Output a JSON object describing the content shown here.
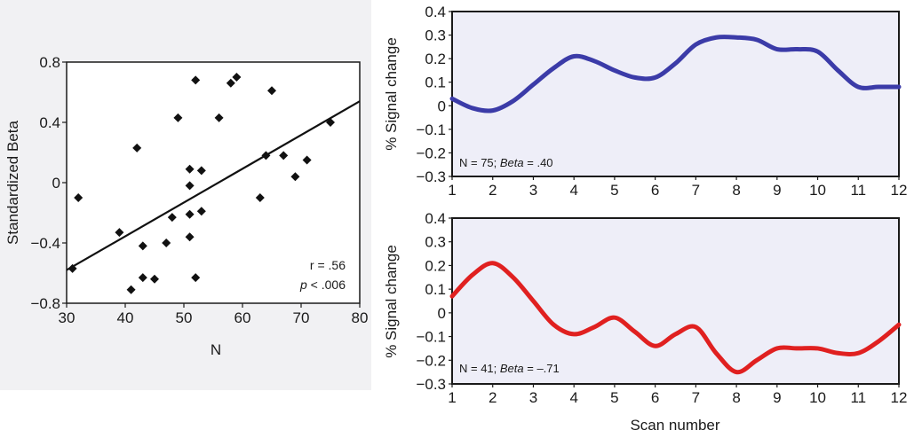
{
  "chart_data": [
    {
      "type": "scatter",
      "xlabel": "N",
      "ylabel": "Standardized Beta",
      "xlim": [
        30,
        80
      ],
      "ylim": [
        -0.8,
        0.8
      ],
      "xticks": [
        30,
        40,
        50,
        60,
        70,
        80
      ],
      "yticks": [
        0.8,
        0.4,
        0,
        -0.4,
        -0.8
      ],
      "ytick_labels": [
        "0.8",
        "0.4",
        "0",
        "−0.4",
        "−0.8"
      ],
      "points": [
        {
          "x": 31,
          "y": -0.57
        },
        {
          "x": 32,
          "y": -0.1
        },
        {
          "x": 39,
          "y": -0.33
        },
        {
          "x": 41,
          "y": -0.71
        },
        {
          "x": 42,
          "y": 0.23
        },
        {
          "x": 43,
          "y": -0.42
        },
        {
          "x": 43,
          "y": -0.63
        },
        {
          "x": 45,
          "y": -0.64
        },
        {
          "x": 47,
          "y": -0.4
        },
        {
          "x": 48,
          "y": -0.23
        },
        {
          "x": 49,
          "y": 0.43
        },
        {
          "x": 51,
          "y": -0.02
        },
        {
          "x": 51,
          "y": 0.09
        },
        {
          "x": 51,
          "y": -0.21
        },
        {
          "x": 51,
          "y": -0.36
        },
        {
          "x": 52,
          "y": 0.68
        },
        {
          "x": 52,
          "y": -0.63
        },
        {
          "x": 53,
          "y": 0.08
        },
        {
          "x": 53,
          "y": -0.19
        },
        {
          "x": 56,
          "y": 0.43
        },
        {
          "x": 58,
          "y": 0.66
        },
        {
          "x": 59,
          "y": 0.7
        },
        {
          "x": 63,
          "y": -0.1
        },
        {
          "x": 64,
          "y": 0.18
        },
        {
          "x": 65,
          "y": 0.61
        },
        {
          "x": 67,
          "y": 0.18
        },
        {
          "x": 69,
          "y": 0.04
        },
        {
          "x": 71,
          "y": 0.15
        },
        {
          "x": 75,
          "y": 0.4
        }
      ],
      "fit_line": {
        "x": [
          30,
          80
        ],
        "y": [
          -0.58,
          0.54
        ]
      },
      "annotation": {
        "r": "r = .56",
        "p_italic": "p",
        "p_rest": " < .006"
      }
    },
    {
      "type": "line",
      "ylabel": "% Signal change",
      "xlabel": "",
      "xlim": [
        1,
        12
      ],
      "ylim": [
        -0.3,
        0.4
      ],
      "xticks": [
        1,
        2,
        3,
        4,
        5,
        6,
        7,
        8,
        9,
        10,
        11,
        12
      ],
      "yticks": [
        0.4,
        0.3,
        0.2,
        0.1,
        0,
        -0.1,
        -0.2,
        -0.3
      ],
      "ytick_labels": [
        "0.4",
        "0.3",
        "0.2",
        "0.1",
        "0",
        "−0.1",
        "−0.2",
        "−0.3"
      ],
      "color": "#3b3ba8",
      "series": [
        {
          "x": [
            1,
            1.5,
            2,
            2.5,
            3,
            3.5,
            4,
            4.5,
            5,
            5.5,
            6,
            6.5,
            7,
            7.5,
            8,
            8.5,
            9,
            9.5,
            10,
            10.5,
            11,
            11.5,
            12
          ],
          "y": [
            0.03,
            -0.01,
            -0.02,
            0.02,
            0.09,
            0.16,
            0.21,
            0.19,
            0.15,
            0.12,
            0.12,
            0.18,
            0.26,
            0.29,
            0.29,
            0.28,
            0.24,
            0.24,
            0.23,
            0.15,
            0.08,
            0.08,
            0.08
          ]
        }
      ],
      "annotation": {
        "prefix": "N = 75; ",
        "beta_italic": "Beta",
        "suffix": " = .40"
      }
    },
    {
      "type": "line",
      "ylabel": "% Signal change",
      "xlabel": "Scan number",
      "xlim": [
        1,
        12
      ],
      "ylim": [
        -0.3,
        0.4
      ],
      "xticks": [
        1,
        2,
        3,
        4,
        5,
        6,
        7,
        8,
        9,
        10,
        11,
        12
      ],
      "yticks": [
        0.4,
        0.3,
        0.2,
        0.1,
        0,
        -0.1,
        -0.2,
        -0.3
      ],
      "ytick_labels": [
        "0.4",
        "0.3",
        "0.2",
        "0.1",
        "0",
        "−0.1",
        "−0.2",
        "−0.3"
      ],
      "color": "#e02020",
      "series": [
        {
          "x": [
            1,
            1.5,
            2,
            2.5,
            3,
            3.5,
            4,
            4.5,
            5,
            5.5,
            6,
            6.5,
            7,
            7.5,
            8,
            8.5,
            9,
            9.5,
            10,
            10.5,
            11,
            11.5,
            12
          ],
          "y": [
            0.07,
            0.16,
            0.21,
            0.15,
            0.05,
            -0.05,
            -0.09,
            -0.06,
            -0.02,
            -0.08,
            -0.14,
            -0.09,
            -0.06,
            -0.17,
            -0.25,
            -0.2,
            -0.15,
            -0.15,
            -0.15,
            -0.17,
            -0.17,
            -0.12,
            -0.05
          ]
        }
      ],
      "annotation": {
        "prefix": "N = 41; ",
        "beta_italic": "Beta",
        "suffix": " = –.71"
      }
    }
  ],
  "colors": {
    "scatter_panel_bg": "#f1f1f3",
    "line_plot_bg": "#eeeef8",
    "axis": "#1a1a1a",
    "text": "#1a1a1a"
  }
}
